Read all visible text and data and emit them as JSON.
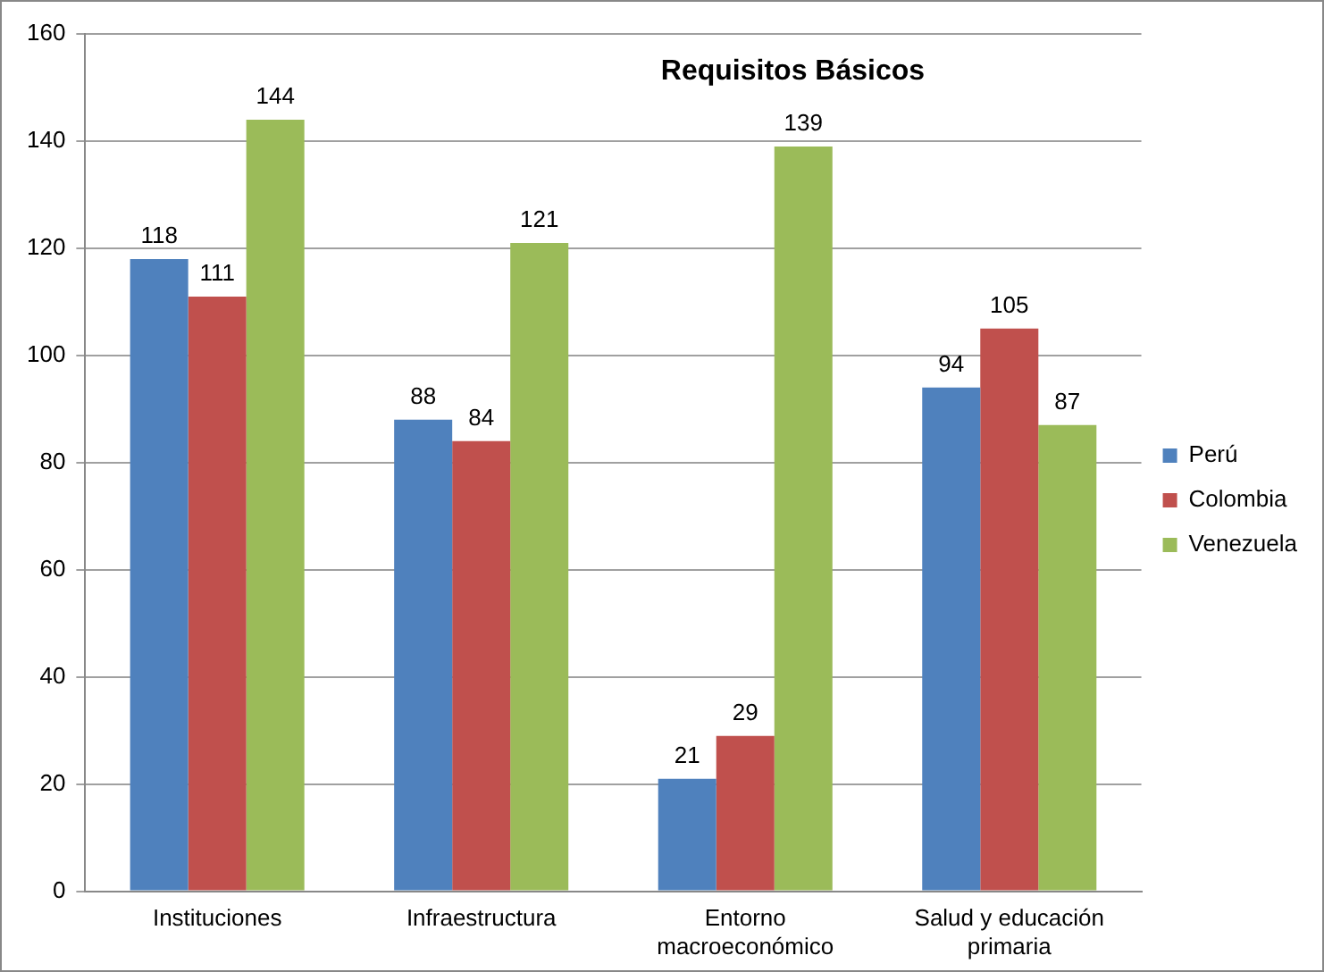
{
  "chart_data": {
    "type": "bar",
    "title": "Requisitos Básicos",
    "categories": [
      "Instituciones",
      "Infraestructura",
      "Entorno macroeconómico",
      "Salud y educación primaria"
    ],
    "series": [
      {
        "name": "Perú",
        "color": "#4f81bd",
        "values": [
          118,
          88,
          21,
          94
        ]
      },
      {
        "name": "Colombia",
        "color": "#c0504d",
        "values": [
          111,
          84,
          29,
          105
        ]
      },
      {
        "name": "Venezuela",
        "color": "#9bbb59",
        "values": [
          144,
          121,
          139,
          87
        ]
      }
    ],
    "ylim": [
      0,
      160
    ],
    "yticks": [
      0,
      20,
      40,
      60,
      80,
      100,
      120,
      140,
      160
    ],
    "grid": "y",
    "legend": "right",
    "data_labels": true
  }
}
